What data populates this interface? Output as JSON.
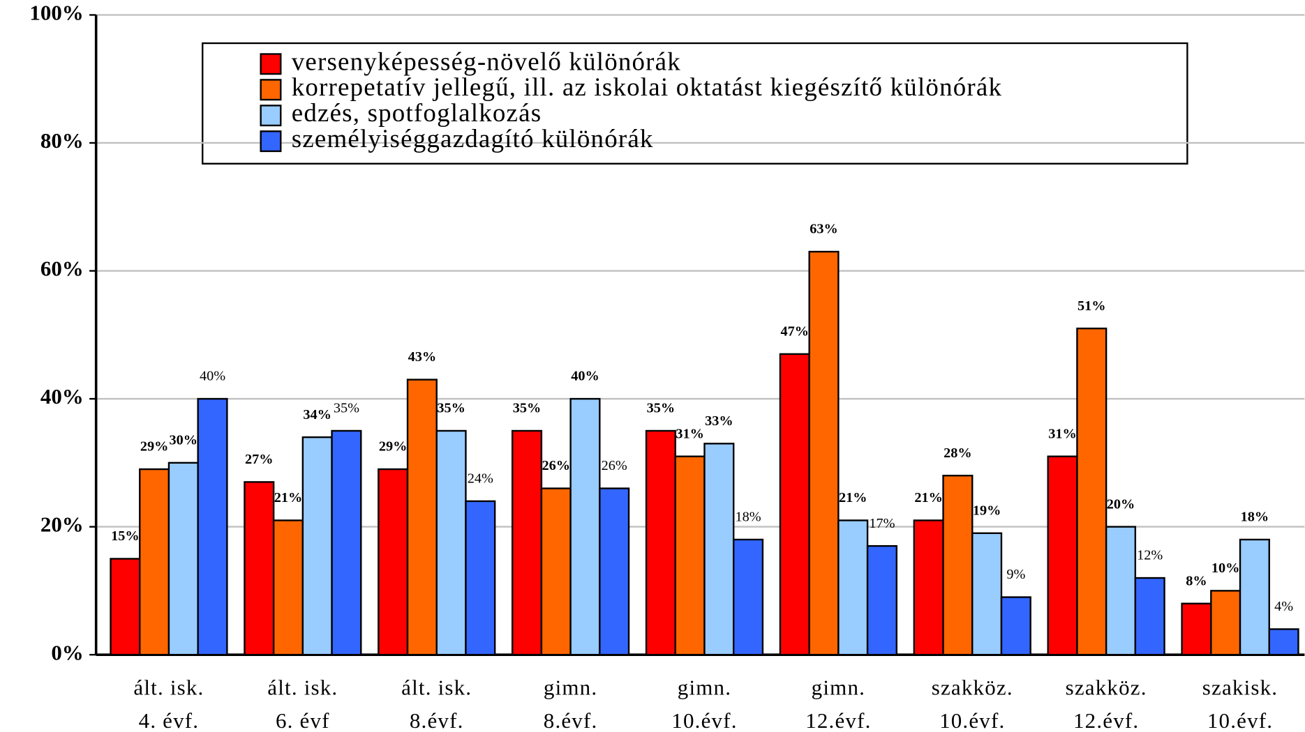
{
  "chart_data": {
    "type": "bar",
    "categories": [
      [
        "ált. isk.",
        "4. évf."
      ],
      [
        "ált. isk.",
        "6. évf"
      ],
      [
        "ált. isk.",
        "8.évf."
      ],
      [
        "gimn.",
        "8.évf."
      ],
      [
        "gimn.",
        "10.évf."
      ],
      [
        "gimn.",
        "12.évf."
      ],
      [
        "szakköz.",
        "10.évf."
      ],
      [
        "szakköz.",
        "12.évf."
      ],
      [
        "szakisk.",
        "10.évf."
      ]
    ],
    "series": [
      {
        "name": "versenyképesség-növelő különórák",
        "color": "#ff0000",
        "values": [
          15,
          27,
          29,
          35,
          35,
          47,
          21,
          31,
          8
        ],
        "value_labels": [
          "15%",
          "27%",
          "29%",
          "35%",
          "35%",
          "47%",
          "21%",
          "31%",
          "8%"
        ]
      },
      {
        "name": "korrepetatív jellegű, ill. az iskolai oktatást kiegészítő különórák",
        "color": "#ff6600",
        "values": [
          29,
          21,
          43,
          26,
          31,
          63,
          28,
          51,
          10
        ],
        "value_labels": [
          "29%",
          "21%",
          "43%",
          "26%",
          "31%",
          "63%",
          "28%",
          "51%",
          "10%"
        ]
      },
      {
        "name": "edzés, spotfoglalkozás",
        "color": "#99ccff",
        "values": [
          30,
          34,
          35,
          40,
          33,
          21,
          19,
          20,
          18
        ],
        "value_labels": [
          "30%",
          "34%",
          "35%",
          "40%",
          "33%",
          "21%",
          "19%",
          "20%",
          "18%"
        ]
      },
      {
        "name": "személyiséggazdagító különórák",
        "color": "#3366ff",
        "values": [
          40,
          35,
          24,
          26,
          18,
          17,
          9,
          12,
          4
        ],
        "value_labels": [
          "40%",
          "35%",
          "24%",
          "26%",
          "18%",
          "17%",
          "9%",
          "12%",
          "4%"
        ]
      }
    ],
    "ylim": [
      0,
      100
    ],
    "yticks": [
      {
        "value": 0,
        "label": "0%"
      },
      {
        "value": 20,
        "label": "20%"
      },
      {
        "value": 40,
        "label": "40%"
      },
      {
        "value": 60,
        "label": "60%"
      },
      {
        "value": 80,
        "label": "80%"
      },
      {
        "value": 100,
        "label": "100%"
      }
    ],
    "grid": true,
    "legend": "top"
  }
}
